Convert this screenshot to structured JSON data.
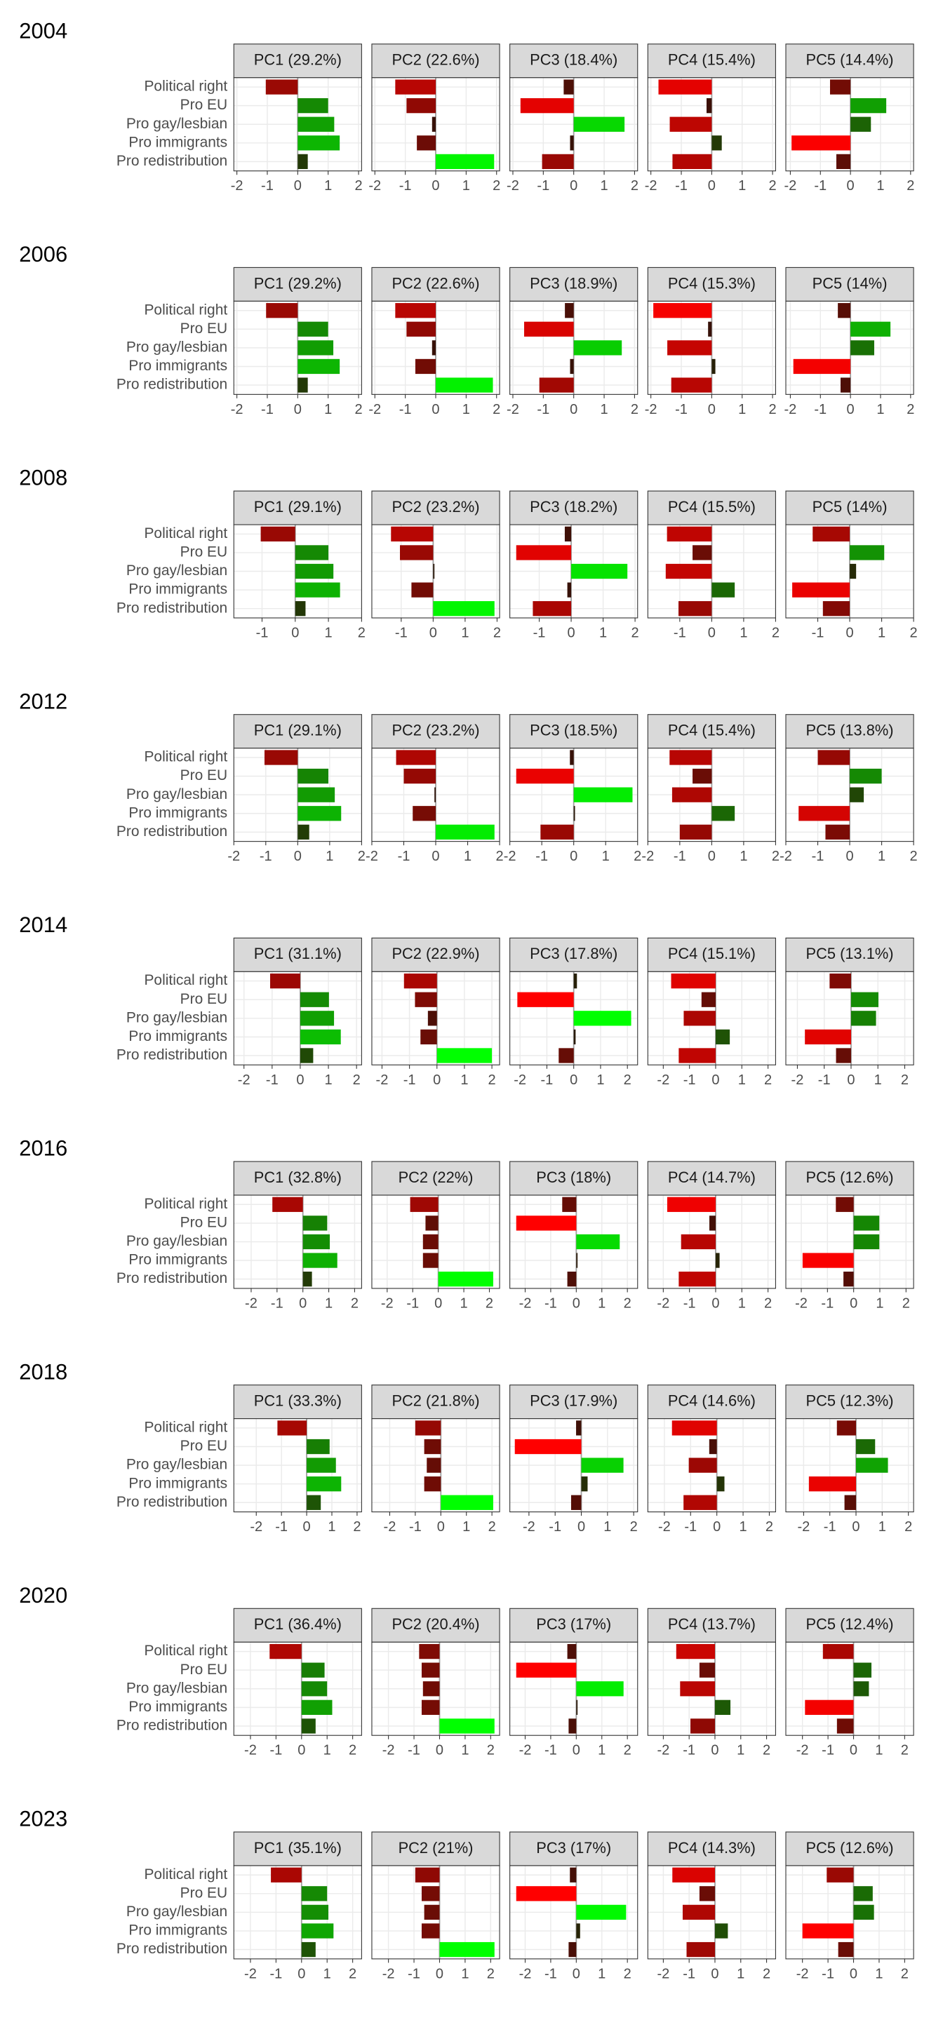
{
  "color_scale": {
    "low": "#ff0000",
    "mid": "#2a1208",
    "high": "#00ff00",
    "limits": [
      -2,
      2
    ]
  },
  "chart_data": [
    {
      "type": "bar",
      "title": "2004",
      "categories": [
        "Political right",
        "Pro EU",
        "Pro gay/lesbian",
        "Pro immigrants",
        "Pro redistribution"
      ],
      "vline": 0,
      "grid": true,
      "facets": [
        {
          "title": "PC1 (29.2%)",
          "values": [
            -1.05,
            1.0,
            1.2,
            1.38,
            0.33
          ],
          "xlim": [
            -2.1,
            2.1
          ],
          "xticks": [
            -2,
            -1,
            0,
            1,
            2
          ]
        },
        {
          "title": "PC2 (22.6%)",
          "values": [
            -1.33,
            -0.96,
            -0.12,
            -0.62,
            1.92
          ],
          "xlim": [
            -2.1,
            2.1
          ],
          "xticks": [
            -2,
            -1,
            0,
            1,
            2
          ]
        },
        {
          "title": "PC3 (18.4%)",
          "values": [
            -0.33,
            -1.75,
            1.67,
            -0.12,
            -1.04
          ],
          "xlim": [
            -2.1,
            2.1
          ],
          "xticks": [
            -2,
            -1,
            0,
            1,
            2
          ]
        },
        {
          "title": "PC4 (15.4%)",
          "values": [
            -1.75,
            -0.17,
            -1.38,
            0.33,
            -1.29
          ],
          "xlim": [
            -2.1,
            2.1
          ],
          "xticks": [
            -2,
            -1,
            0,
            1,
            2
          ]
        },
        {
          "title": "PC5 (14.4%)",
          "values": [
            -0.68,
            1.19,
            0.68,
            -1.96,
            -0.47
          ],
          "xlim": [
            -2.15,
            2.1
          ],
          "xticks": [
            -2,
            -1,
            0,
            1,
            2
          ]
        }
      ]
    },
    {
      "type": "bar",
      "title": "2006",
      "categories": [
        "Political right",
        "Pro EU",
        "Pro gay/lesbian",
        "Pro immigrants",
        "Pro redistribution"
      ],
      "vline": 0,
      "grid": true,
      "facets": [
        {
          "title": "PC1 (29.2%)",
          "values": [
            -1.04,
            1.0,
            1.17,
            1.38,
            0.33
          ],
          "xlim": [
            -2.1,
            2.1
          ],
          "xticks": [
            -2,
            -1,
            0,
            1,
            2
          ]
        },
        {
          "title": "PC2 (22.6%)",
          "values": [
            -1.33,
            -0.96,
            -0.12,
            -0.67,
            1.88
          ],
          "xlim": [
            -2.1,
            2.1
          ],
          "xticks": [
            -2,
            -1,
            0,
            1,
            2
          ]
        },
        {
          "title": "PC3 (18.9%)",
          "values": [
            -0.29,
            -1.63,
            1.58,
            -0.12,
            -1.13
          ],
          "xlim": [
            -2.1,
            2.1
          ],
          "xticks": [
            -2,
            -1,
            0,
            1,
            2
          ]
        },
        {
          "title": "PC4 (15.3%)",
          "values": [
            -1.92,
            -0.12,
            -1.46,
            0.12,
            -1.33
          ],
          "xlim": [
            -2.1,
            2.1
          ],
          "xticks": [
            -2,
            -1,
            0,
            1,
            2
          ]
        },
        {
          "title": "PC5 (14%)",
          "values": [
            -0.42,
            1.33,
            0.79,
            -1.9,
            -0.33
          ],
          "xlim": [
            -2.15,
            2.1
          ],
          "xticks": [
            -2,
            -1,
            0,
            1,
            2
          ]
        }
      ]
    },
    {
      "type": "bar",
      "title": "2008",
      "categories": [
        "Political right",
        "Pro EU",
        "Pro gay/lesbian",
        "Pro immigrants",
        "Pro redistribution"
      ],
      "vline": 0,
      "grid": true,
      "facets": [
        {
          "title": "PC1 (29.1%)",
          "values": [
            -1.04,
            1.0,
            1.15,
            1.35,
            0.31
          ],
          "xlim": [
            -1.85,
            2.0
          ],
          "xticks": [
            -1,
            0,
            1,
            2
          ]
        },
        {
          "title": "PC2 (23.2%)",
          "values": [
            -1.32,
            -1.04,
            0.04,
            -0.68,
            1.92
          ],
          "xlim": [
            -1.92,
            2.08
          ],
          "xticks": [
            -1,
            0,
            1,
            2
          ]
        },
        {
          "title": "PC3 (18.2%)",
          "values": [
            -0.2,
            -1.72,
            1.76,
            -0.12,
            -1.2
          ],
          "xlim": [
            -1.92,
            2.08
          ],
          "xticks": [
            -1,
            0,
            1,
            2
          ]
        },
        {
          "title": "PC4 (15.5%)",
          "values": [
            -1.4,
            -0.6,
            -1.44,
            0.72,
            -1.04
          ],
          "xlim": [
            -2.0,
            2.0
          ],
          "xticks": [
            -1,
            0,
            1,
            2
          ]
        },
        {
          "title": "PC5 (14%)",
          "values": [
            -1.16,
            1.08,
            0.2,
            -1.8,
            -0.84
          ],
          "xlim": [
            -2.0,
            2.0
          ],
          "xticks": [
            -1,
            0,
            1,
            2
          ]
        }
      ]
    },
    {
      "type": "bar",
      "title": "2012",
      "categories": [
        "Political right",
        "Pro EU",
        "Pro gay/lesbian",
        "Pro immigrants",
        "Pro redistribution"
      ],
      "vline": 0,
      "grid": true,
      "facets": [
        {
          "title": "PC1 (29.1%)",
          "values": [
            -1.04,
            0.96,
            1.16,
            1.36,
            0.36
          ],
          "xlim": [
            -2,
            2
          ],
          "xticks": [
            -2,
            -1,
            0,
            1,
            2
          ]
        },
        {
          "title": "PC2 (23.2%)",
          "values": [
            -1.24,
            -1.0,
            -0.04,
            -0.72,
            1.84
          ],
          "xlim": [
            -2,
            2
          ],
          "xticks": [
            -2,
            -1,
            0,
            1,
            2
          ]
        },
        {
          "title": "PC3 (18.5%)",
          "values": [
            -0.12,
            -1.8,
            1.84,
            0.04,
            -1.04
          ],
          "xlim": [
            -2,
            2
          ],
          "xticks": [
            -2,
            -1,
            0,
            1,
            2
          ]
        },
        {
          "title": "PC4 (15.4%)",
          "values": [
            -1.32,
            -0.6,
            -1.24,
            0.72,
            -1.0
          ],
          "xlim": [
            -2,
            2
          ],
          "xticks": [
            -2,
            -1,
            0,
            1,
            2
          ]
        },
        {
          "title": "PC5 (13.8%)",
          "values": [
            -1.0,
            1.0,
            0.44,
            -1.6,
            -0.76
          ],
          "xlim": [
            -2,
            2
          ],
          "xticks": [
            -2,
            -1,
            0,
            1,
            2
          ]
        }
      ]
    },
    {
      "type": "bar",
      "title": "2014",
      "categories": [
        "Political right",
        "Pro EU",
        "Pro gay/lesbian",
        "Pro immigrants",
        "Pro redistribution"
      ],
      "vline": 0,
      "grid": true,
      "facets": [
        {
          "title": "PC1 (31.1%)",
          "values": [
            -1.07,
            1.02,
            1.2,
            1.44,
            0.46
          ],
          "xlim": [
            -2.36,
            2.18
          ],
          "xticks": [
            -2,
            -1,
            0,
            1,
            2
          ]
        },
        {
          "title": "PC2 (22.9%)",
          "values": [
            -1.2,
            -0.8,
            -0.33,
            -0.6,
            2.0
          ],
          "xlim": [
            -2.37,
            2.28
          ],
          "xticks": [
            -2,
            -1,
            0,
            1,
            2
          ]
        },
        {
          "title": "PC3 (17.8%)",
          "values": [
            0.12,
            -2.1,
            2.14,
            0.07,
            -0.56
          ],
          "xlim": [
            -2.38,
            2.38
          ],
          "xticks": [
            -2,
            -1,
            0,
            1,
            2
          ]
        },
        {
          "title": "PC4 (15.1%)",
          "values": [
            -1.7,
            -0.54,
            -1.22,
            0.54,
            -1.41
          ],
          "xlim": [
            -2.59,
            2.29
          ],
          "xticks": [
            -2,
            -1,
            0,
            1,
            2
          ]
        },
        {
          "title": "PC5 (13.1%)",
          "values": [
            -0.8,
            1.02,
            0.93,
            -1.72,
            -0.56
          ],
          "xlim": [
            -2.43,
            2.33
          ],
          "xticks": [
            -2,
            -1,
            0,
            1,
            2
          ]
        }
      ]
    },
    {
      "type": "bar",
      "title": "2016",
      "categories": [
        "Political right",
        "Pro EU",
        "Pro gay/lesbian",
        "Pro immigrants",
        "Pro redistribution"
      ],
      "vline": 0,
      "grid": true,
      "facets": [
        {
          "title": "PC1 (32.8%)",
          "values": [
            -1.18,
            0.94,
            1.04,
            1.33,
            0.35
          ],
          "xlim": [
            -2.67,
            2.27
          ],
          "xticks": [
            -2,
            -1,
            0,
            1,
            2
          ]
        },
        {
          "title": "PC2 (22%)",
          "values": [
            -1.1,
            -0.5,
            -0.6,
            -0.6,
            2.15
          ],
          "xlim": [
            -2.6,
            2.4
          ],
          "xticks": [
            -2,
            -1,
            0,
            1,
            2
          ]
        },
        {
          "title": "PC3 (18%)",
          "values": [
            -0.55,
            -2.35,
            1.7,
            0.05,
            -0.35
          ],
          "xlim": [
            -2.6,
            2.4
          ],
          "xticks": [
            -2,
            -1,
            0,
            1,
            2
          ]
        },
        {
          "title": "PC4 (14.7%)",
          "values": [
            -1.85,
            -0.24,
            -1.32,
            0.15,
            -1.41
          ],
          "xlim": [
            -2.59,
            2.29
          ],
          "xticks": [
            -2,
            -1,
            0,
            1,
            2
          ]
        },
        {
          "title": "PC5 (12.6%)",
          "values": [
            -0.68,
            0.98,
            0.98,
            -1.95,
            -0.39
          ],
          "xlim": [
            -2.59,
            2.29
          ],
          "xticks": [
            -2,
            -1,
            0,
            1,
            2
          ]
        }
      ]
    },
    {
      "type": "bar",
      "title": "2018",
      "categories": [
        "Political right",
        "Pro EU",
        "Pro gay/lesbian",
        "Pro immigrants",
        "Pro redistribution"
      ],
      "vline": 0,
      "grid": true,
      "facets": [
        {
          "title": "PC1 (33.3%)",
          "values": [
            -1.16,
            0.91,
            1.16,
            1.37,
            0.56
          ],
          "xlim": [
            -2.89,
            2.18
          ],
          "xticks": [
            -2,
            -1,
            0,
            1,
            2
          ]
        },
        {
          "title": "PC2 (21.8%)",
          "values": [
            -1.0,
            -0.65,
            -0.55,
            -0.65,
            2.05
          ],
          "xlim": [
            -2.7,
            2.3
          ],
          "xticks": [
            -2,
            -1,
            0,
            1,
            2
          ]
        },
        {
          "title": "PC3 (17.9%)",
          "values": [
            -0.2,
            -2.54,
            1.61,
            0.24,
            -0.39
          ],
          "xlim": [
            -2.73,
            2.15
          ],
          "xticks": [
            -2,
            -1,
            0,
            1,
            2
          ]
        },
        {
          "title": "PC4 (14.6%)",
          "values": [
            -1.71,
            -0.29,
            -1.07,
            0.29,
            -1.27
          ],
          "xlim": [
            -2.63,
            2.24
          ],
          "xticks": [
            -2,
            -1,
            0,
            1,
            2
          ]
        },
        {
          "title": "PC5 (12.3%)",
          "values": [
            -0.73,
            0.73,
            1.22,
            -1.8,
            -0.44
          ],
          "xlim": [
            -2.68,
            2.2
          ],
          "xticks": [
            -2,
            -1,
            0,
            1,
            2
          ]
        }
      ]
    },
    {
      "type": "bar",
      "title": "2020",
      "categories": [
        "Political right",
        "Pro EU",
        "Pro gay/lesbian",
        "Pro immigrants",
        "Pro redistribution"
      ],
      "vline": 0,
      "grid": true,
      "facets": [
        {
          "title": "PC1 (36.4%)",
          "values": [
            -1.25,
            0.9,
            1.0,
            1.2,
            0.55
          ],
          "xlim": [
            -2.65,
            2.35
          ],
          "xticks": [
            -2,
            -1,
            0,
            1,
            2
          ]
        },
        {
          "title": "PC2 (20.4%)",
          "values": [
            -0.8,
            -0.7,
            -0.65,
            -0.7,
            2.15
          ],
          "xlim": [
            -2.65,
            2.35
          ],
          "xticks": [
            -2,
            -1,
            0,
            1,
            2
          ]
        },
        {
          "title": "PC3 (17%)",
          "values": [
            -0.35,
            -2.35,
            1.85,
            0.05,
            -0.3
          ],
          "xlim": [
            -2.6,
            2.4
          ],
          "xticks": [
            -2,
            -1,
            0,
            1,
            2
          ]
        },
        {
          "title": "PC4 (13.7%)",
          "values": [
            -1.5,
            -0.6,
            -1.35,
            0.6,
            -0.95
          ],
          "xlim": [
            -2.6,
            2.35
          ],
          "xticks": [
            -2,
            -1,
            0,
            1,
            2
          ]
        },
        {
          "title": "PC5 (12.4%)",
          "values": [
            -1.2,
            0.7,
            0.6,
            -1.9,
            -0.65
          ],
          "xlim": [
            -2.65,
            2.35
          ],
          "xticks": [
            -2,
            -1,
            0,
            1,
            2
          ]
        }
      ]
    },
    {
      "type": "bar",
      "title": "2023",
      "categories": [
        "Political right",
        "Pro EU",
        "Pro gay/lesbian",
        "Pro immigrants",
        "Pro redistribution"
      ],
      "vline": 0,
      "grid": true,
      "facets": [
        {
          "title": "PC1 (35.1%)",
          "values": [
            -1.2,
            1.0,
            1.05,
            1.25,
            0.55
          ],
          "xlim": [
            -2.65,
            2.35
          ],
          "xticks": [
            -2,
            -1,
            0,
            1,
            2
          ]
        },
        {
          "title": "PC2 (21%)",
          "values": [
            -0.95,
            -0.7,
            -0.6,
            -0.7,
            2.15
          ],
          "xlim": [
            -2.65,
            2.35
          ],
          "xticks": [
            -2,
            -1,
            0,
            1,
            2
          ]
        },
        {
          "title": "PC3 (17%)",
          "values": [
            -0.25,
            -2.35,
            1.95,
            0.15,
            -0.3
          ],
          "xlim": [
            -2.6,
            2.4
          ],
          "xticks": [
            -2,
            -1,
            0,
            1,
            2
          ]
        },
        {
          "title": "PC4 (14.3%)",
          "values": [
            -1.65,
            -0.6,
            -1.25,
            0.5,
            -1.1
          ],
          "xlim": [
            -2.6,
            2.35
          ],
          "xticks": [
            -2,
            -1,
            0,
            1,
            2
          ]
        },
        {
          "title": "PC5 (12.6%)",
          "values": [
            -1.05,
            0.75,
            0.8,
            -2.0,
            -0.6
          ],
          "xlim": [
            -2.65,
            2.35
          ],
          "xticks": [
            -2,
            -1,
            0,
            1,
            2
          ]
        }
      ]
    }
  ]
}
